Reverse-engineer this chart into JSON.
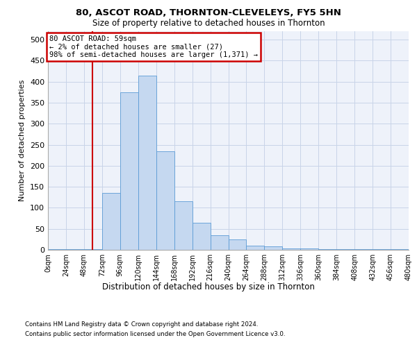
{
  "title": "80, ASCOT ROAD, THORNTON-CLEVELEYS, FY5 5HN",
  "subtitle": "Size of property relative to detached houses in Thornton",
  "xlabel": "Distribution of detached houses by size in Thornton",
  "ylabel": "Number of detached properties",
  "footnote1": "Contains HM Land Registry data © Crown copyright and database right 2024.",
  "footnote2": "Contains public sector information licensed under the Open Government Licence v3.0.",
  "annotation_line1": "80 ASCOT ROAD: 59sqm",
  "annotation_line2": "← 2% of detached houses are smaller (27)",
  "annotation_line3": "98% of semi-detached houses are larger (1,371) →",
  "bar_color": "#c5d8f0",
  "bar_edge_color": "#5b9bd5",
  "grid_color": "#c8d4e8",
  "red_line_color": "#cc0000",
  "background_color": "#eef2fa",
  "bin_edges": [
    0,
    24,
    48,
    72,
    96,
    120,
    144,
    168,
    192,
    216,
    240,
    264,
    288,
    312,
    336,
    360,
    384,
    408,
    432,
    456,
    480
  ],
  "bin_labels": [
    "0sqm",
    "24sqm",
    "48sqm",
    "72sqm",
    "96sqm",
    "120sqm",
    "144sqm",
    "168sqm",
    "192sqm",
    "216sqm",
    "240sqm",
    "264sqm",
    "288sqm",
    "312sqm",
    "336sqm",
    "360sqm",
    "384sqm",
    "408sqm",
    "432sqm",
    "456sqm",
    "480sqm"
  ],
  "bar_heights": [
    2,
    2,
    2,
    135,
    375,
    415,
    235,
    115,
    65,
    35,
    25,
    10,
    8,
    3,
    3,
    1,
    1,
    1,
    1,
    1,
    2
  ],
  "property_size": 59,
  "ylim": [
    0,
    520
  ],
  "yticks": [
    0,
    50,
    100,
    150,
    200,
    250,
    300,
    350,
    400,
    450,
    500
  ]
}
